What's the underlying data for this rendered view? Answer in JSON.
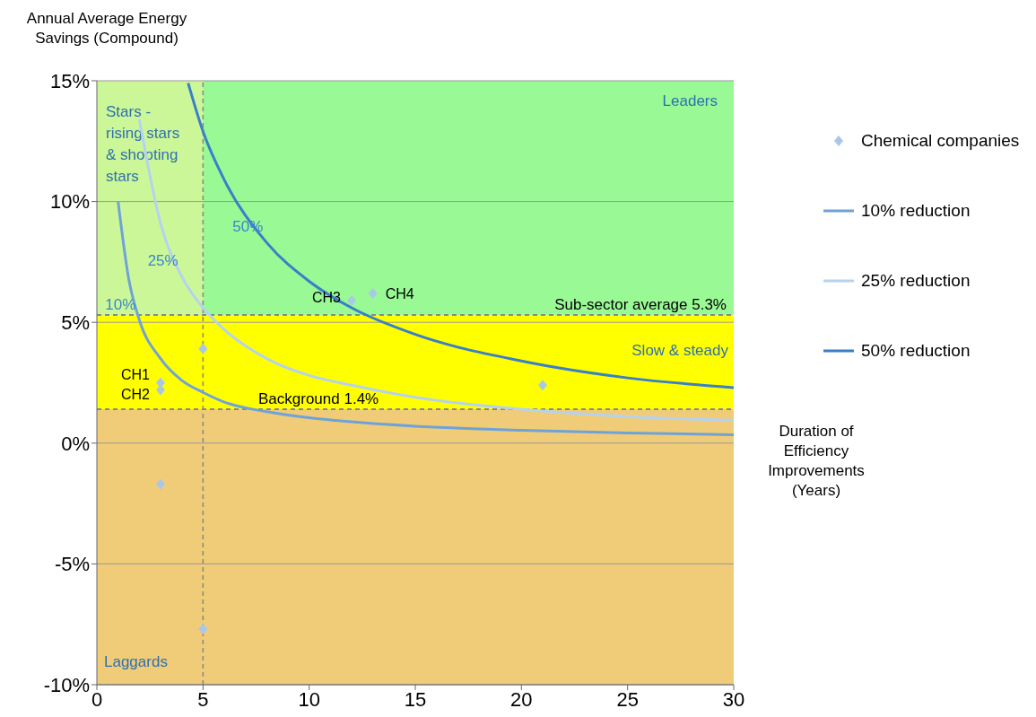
{
  "chart_data": {
    "type": "scatter",
    "xlabel": "Duration of Efficiency Improvements (Years)",
    "ylabel": "Annual Average Energy Savings (Compound)",
    "xlim": [
      0,
      30
    ],
    "xticks": [
      0,
      5,
      10,
      15,
      20,
      25,
      30
    ],
    "ylim": [
      -10,
      15
    ],
    "yticks": [
      {
        "value": -10,
        "label": "-10%"
      },
      {
        "value": -5,
        "label": "-5%"
      },
      {
        "value": 0,
        "label": "0%"
      },
      {
        "value": 5,
        "label": "5%"
      },
      {
        "value": 10,
        "label": "10%"
      },
      {
        "value": 15,
        "label": "15%"
      }
    ],
    "grid": "y",
    "legend": "right",
    "series": [
      {
        "name": "Chemical companies",
        "marker": "diamond",
        "color": "#a9c8e8",
        "x": [
          3,
          3,
          5,
          3,
          5,
          12,
          13,
          21
        ],
        "values": [
          2.5,
          2.2,
          3.9,
          -1.7,
          -7.7,
          5.9,
          6.2,
          2.4
        ]
      },
      {
        "name": "10% reduction",
        "type": "line",
        "marker": "none",
        "color": "#6fa3d8",
        "x": [
          1,
          1.5,
          2,
          3,
          4,
          5,
          6,
          8,
          10,
          12,
          15,
          20,
          25,
          30
        ],
        "values": [
          10,
          6.8,
          5.1,
          3.5,
          2.6,
          2.1,
          1.7,
          1.3,
          1.05,
          0.88,
          0.7,
          0.53,
          0.42,
          0.35
        ]
      },
      {
        "name": "25% reduction",
        "type": "line",
        "marker": "none",
        "color": "#b5d3ee",
        "x": [
          2,
          3,
          4,
          5,
          6,
          8,
          10,
          12,
          15,
          20,
          25,
          30
        ],
        "values": [
          13.4,
          9.1,
          6.9,
          5.6,
          4.7,
          3.5,
          2.8,
          2.4,
          1.9,
          1.4,
          1.1,
          0.95
        ]
      },
      {
        "name": "50% reduction",
        "type": "line",
        "marker": "none",
        "color": "#3a7fc8",
        "x": [
          4.3,
          5,
          6,
          8,
          10,
          12,
          15,
          20,
          25,
          30
        ],
        "values": [
          14.9,
          12.9,
          10.9,
          8.3,
          6.7,
          5.6,
          4.5,
          3.4,
          2.7,
          2.3
        ]
      }
    ],
    "bands": [
      {
        "axis": "y",
        "from": -10,
        "to": 1.4,
        "color": "#f0cc78",
        "label": "Laggards"
      },
      {
        "axis": "y",
        "from": 1.4,
        "to": 5.3,
        "color": "#ffff00",
        "label": "Slow & steady"
      },
      {
        "axis": "y",
        "from": 5.3,
        "to": 15,
        "color": "#99f995",
        "label": "Leaders"
      },
      {
        "axis": "x",
        "from": 0,
        "to": 5,
        "color": "#ccf799",
        "label": "Stars - rising stars & shooting stars"
      }
    ],
    "ref_lines": [
      {
        "axis": "y",
        "value": 5.3,
        "label": "Sub-sector average 5.3%",
        "color": "#888888",
        "line_style": "dashed"
      },
      {
        "axis": "y",
        "value": 1.4,
        "label": "Background 1.4%",
        "color": "#888888",
        "line_style": "dashed"
      },
      {
        "axis": "x",
        "value": 5,
        "color": "#888888",
        "line_style": "dashed"
      }
    ],
    "annotations": [
      {
        "text": "10%",
        "x": 2,
        "y": 5.1
      },
      {
        "text": "25%",
        "x": 4,
        "y": 6.9
      },
      {
        "text": "50%",
        "x": 8,
        "y": 8.3
      },
      {
        "text": "CH1",
        "x": 3,
        "y": 2.5
      },
      {
        "text": "CH2",
        "x": 3,
        "y": 2.2
      },
      {
        "text": "CH3",
        "x": 12,
        "y": 5.9
      },
      {
        "text": "CH4",
        "x": 13,
        "y": 6.2
      }
    ]
  }
}
